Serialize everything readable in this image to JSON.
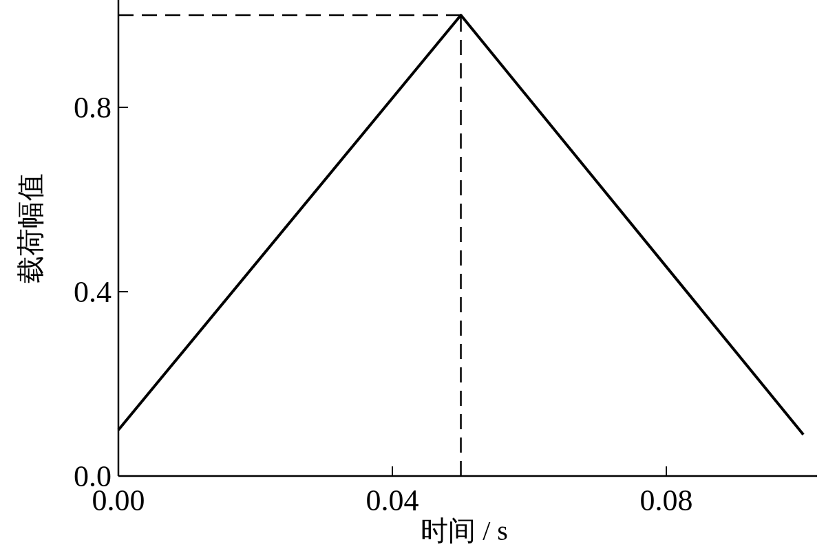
{
  "chart_data": {
    "type": "line",
    "xlabel": "时间 / s",
    "ylabel": "载荷幅值",
    "color": "#000000",
    "x": [
      0,
      0.05,
      0.1
    ],
    "values": [
      0.1,
      1.0,
      0.09
    ],
    "xlim": [
      0,
      0.102
    ],
    "ylim": [
      0,
      1.03
    ],
    "xticks": [
      {
        "value": 0,
        "label": "0.00"
      },
      {
        "value": 0.04,
        "label": "0.04"
      },
      {
        "value": 0.08,
        "label": "0.08"
      }
    ],
    "yticks": [
      {
        "value": 0,
        "label": "0.0"
      },
      0.4,
      0.8
    ],
    "ref_lines": [
      {
        "axis": "x",
        "value": 0.05,
        "line_style": "dashed"
      },
      {
        "axis": "y",
        "value": 1.0,
        "line_style": "dashed"
      }
    ]
  }
}
